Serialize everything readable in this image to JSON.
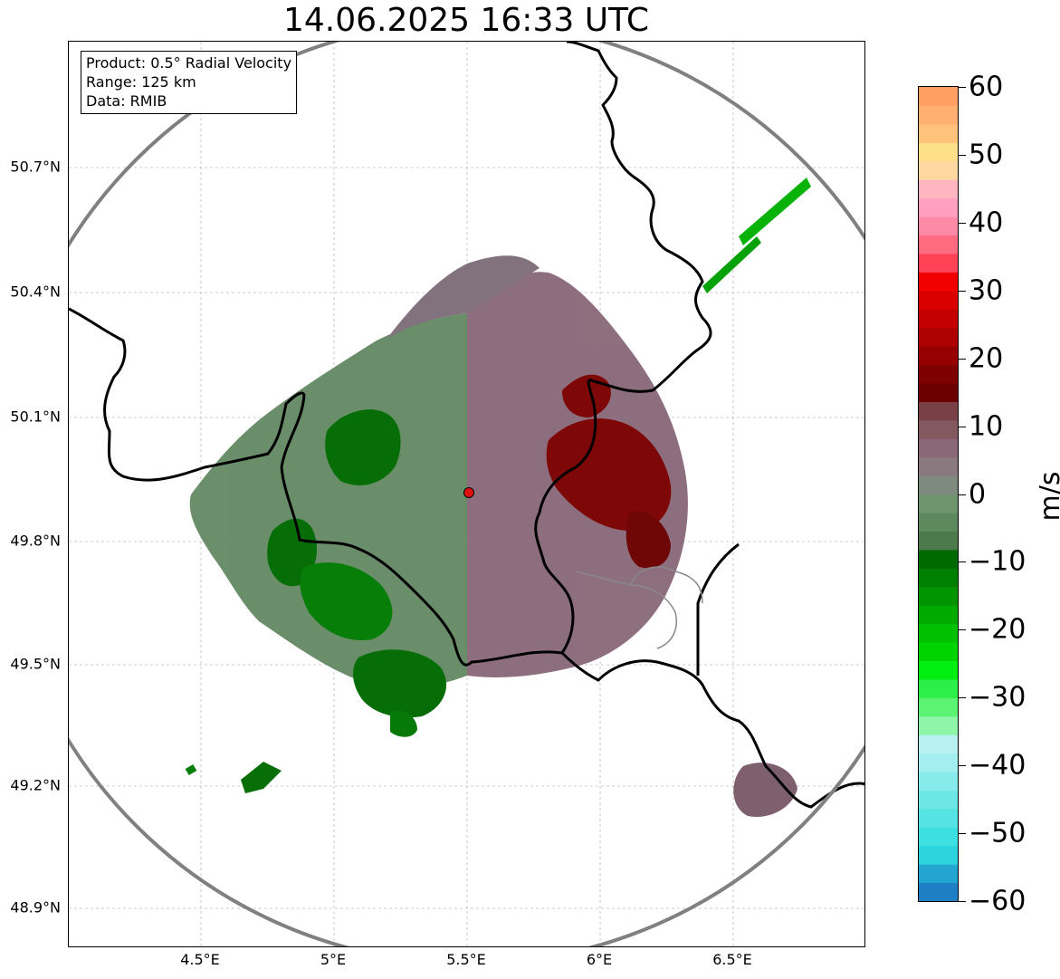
{
  "title": "14.06.2025 16:33 UTC",
  "info": {
    "product": "Product: 0.5° Radial Velocity",
    "range": "Range: 125 km",
    "source": "Data: RMIB"
  },
  "axes": {
    "lat_labels": [
      "50.7°N",
      "50.4°N",
      "50.1°N",
      "49.8°N",
      "49.5°N",
      "49.2°N",
      "48.9°N"
    ],
    "lon_labels": [
      "4.5°E",
      "5°E",
      "5.5°E",
      "6°E",
      "6.5°E"
    ]
  },
  "colorbar": {
    "unit": "m/s",
    "tick_labels": [
      "60",
      "50",
      "40",
      "30",
      "20",
      "10",
      "0",
      "−10",
      "−20",
      "−30",
      "−40",
      "−50",
      "−60"
    ],
    "min": -60,
    "max": 60,
    "colors": [
      "#1f7fc4",
      "#22a5d0",
      "#2bd4dc",
      "#3ddfe0",
      "#55e3e3",
      "#6de6e6",
      "#88ebeb",
      "#a3eeee",
      "#b9f1f1",
      "#8ff5a8",
      "#5cf272",
      "#2af047",
      "#00ee10",
      "#00d400",
      "#00c000",
      "#00aa00",
      "#009400",
      "#007f00",
      "#006a00",
      "#4d7a4d",
      "#5e885e",
      "#6e946e",
      "#7f8a7f",
      "#8a7a7f",
      "#8b6878",
      "#84585f",
      "#7a4048",
      "#6b0000",
      "#7f0000",
      "#960000",
      "#ad0000",
      "#c40000",
      "#db0000",
      "#f20000",
      "#ff4255",
      "#ff6b80",
      "#ff8aa8",
      "#ffa0c0",
      "#ffb6c0",
      "#ffd7a0",
      "#ffe08a",
      "#ffc27a",
      "#ffb070",
      "#ff9f62"
    ]
  },
  "radar_site_color": "#e01010",
  "range_ring_color": "#808080"
}
